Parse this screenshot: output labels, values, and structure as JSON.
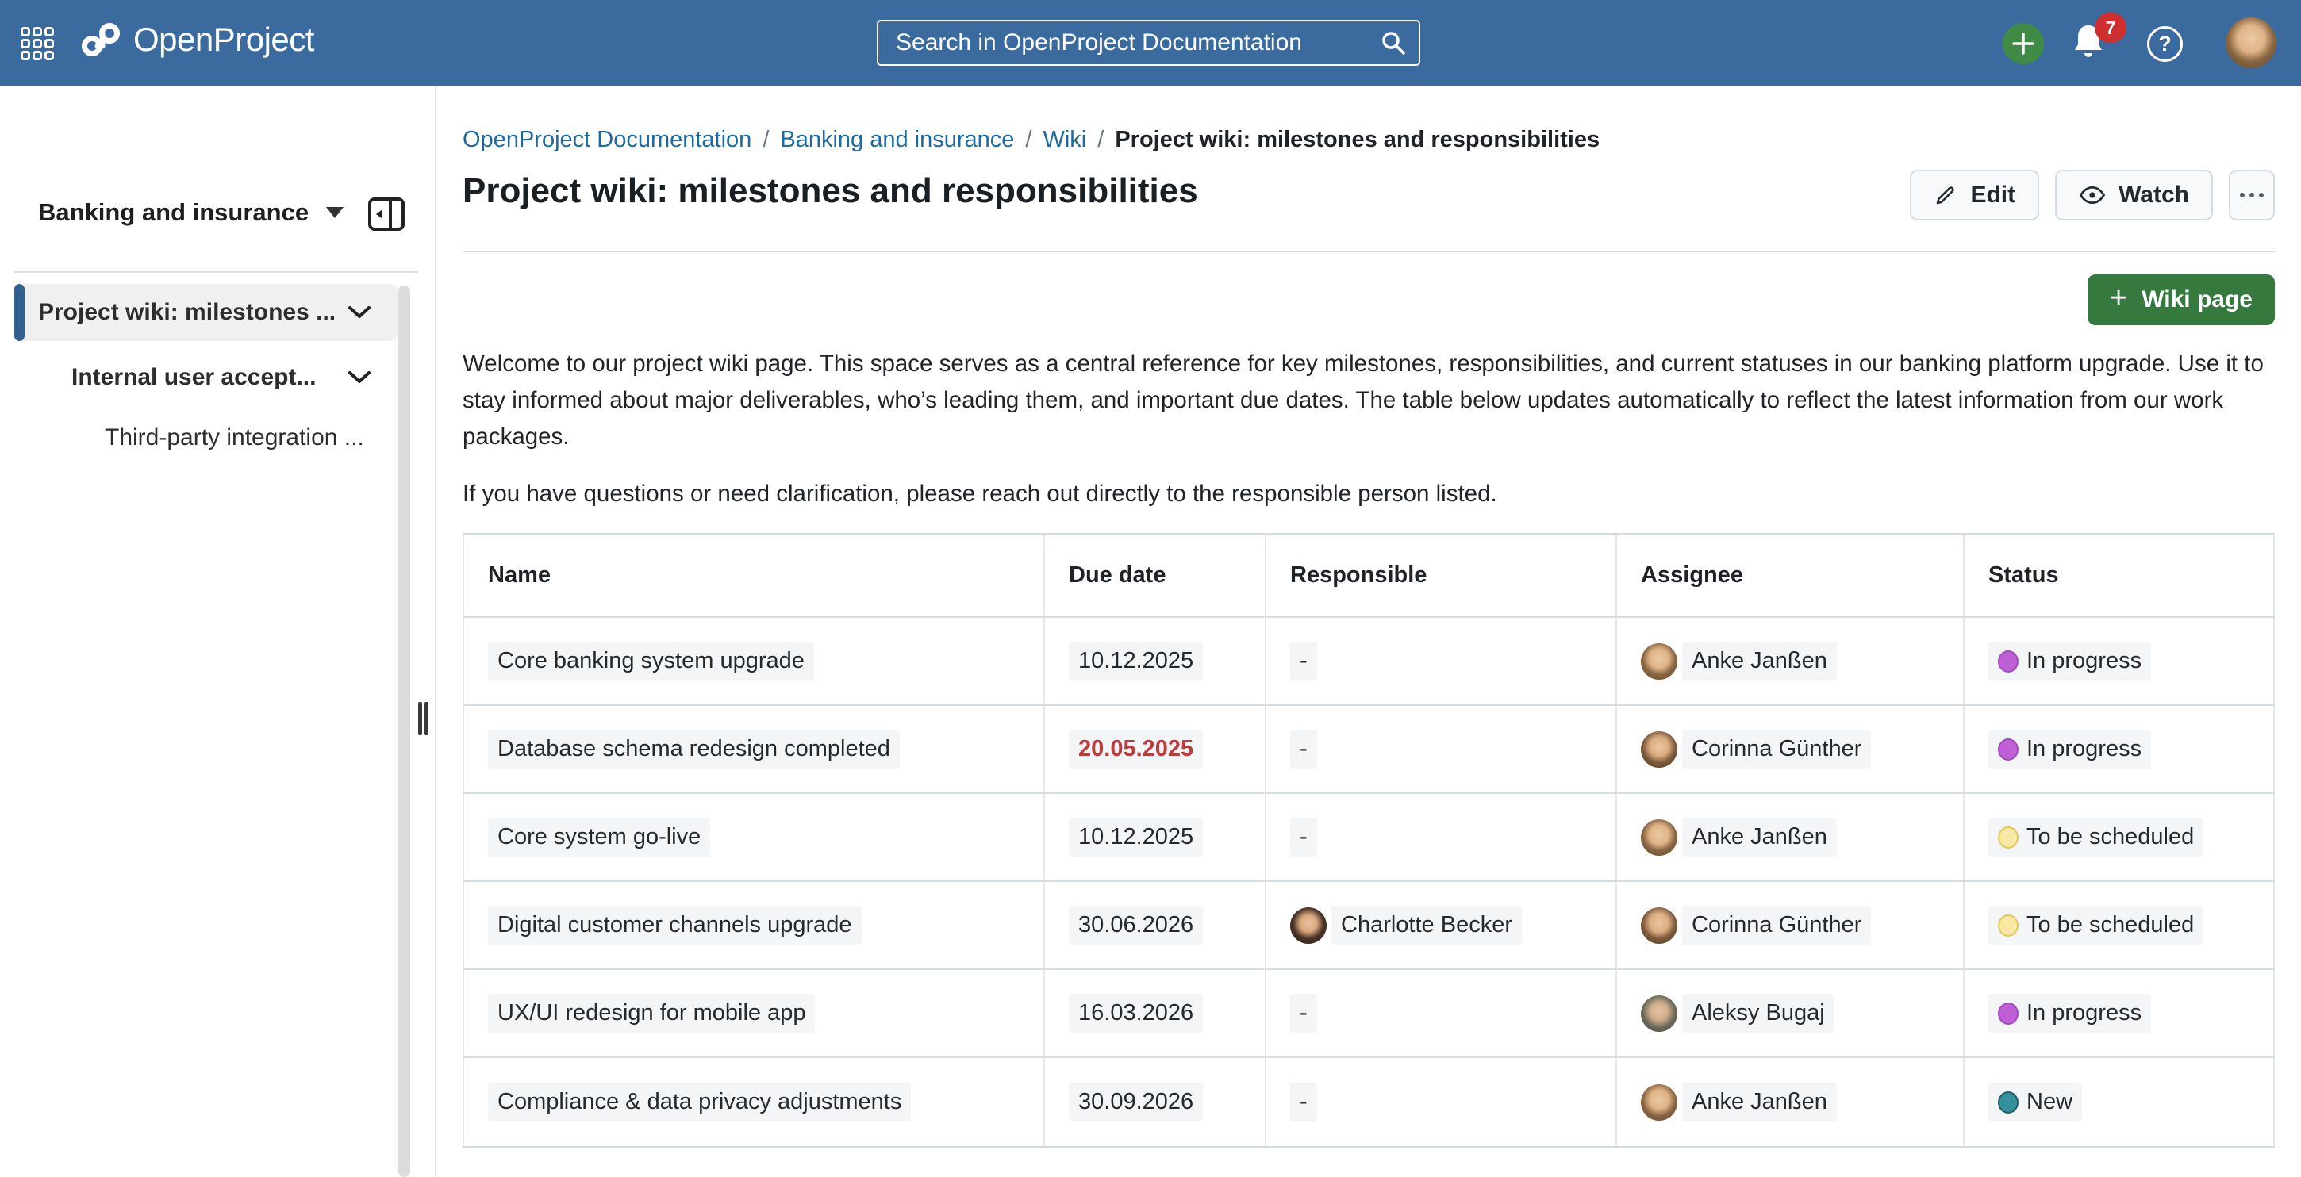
{
  "header": {
    "logo_text": "OpenProject",
    "search_placeholder": "Search in OpenProject Documentation",
    "notification_count": "7",
    "help_label": "?"
  },
  "sidebar": {
    "project_name": "Banking and insurance",
    "back_label": "Project wiki: milestones ...",
    "items": [
      {
        "label": "Project wiki: milestones ...",
        "selected": true
      },
      {
        "label": "Internal user accept...",
        "selected": false
      },
      {
        "label": "Third-party integration ...",
        "selected": false
      }
    ]
  },
  "breadcrumb": {
    "separator": "/",
    "items": [
      "OpenProject Documentation",
      "Banking and insurance",
      "Wiki",
      "Project wiki: milestones and responsibilities"
    ]
  },
  "page": {
    "title": "Project wiki: milestones and responsibilities",
    "edit_label": "Edit",
    "watch_label": "Watch",
    "add_button_label": "Wiki page",
    "add_button_plus": "+",
    "paragraphs": [
      "Welcome to our project wiki page. This space serves as a central reference for key milestones, responsibilities, and current statuses in our banking platform upgrade. Use it to stay informed about major deliverables, who’s leading them, and important due dates. The table below updates automatically to reflect the latest information from our work packages.",
      "If you have questions or need clarification, please reach out directly to the responsible person listed."
    ]
  },
  "table": {
    "columns": [
      "Name",
      "Due date",
      "Responsible",
      "Assignee",
      "Status"
    ],
    "empty_value": "-",
    "rows": [
      {
        "name": "Core banking system upgrade",
        "due": "10.12.2025",
        "overdue": false,
        "responsible": null,
        "assignee": {
          "name": "Anke Janßen",
          "avatar": "anke"
        },
        "status": "In progress",
        "status_key": "in_progress"
      },
      {
        "name": "Database schema redesign completed",
        "due": "20.05.2025",
        "overdue": true,
        "responsible": null,
        "assignee": {
          "name": "Corinna Günther",
          "avatar": "corinna"
        },
        "status": "In progress",
        "status_key": "in_progress"
      },
      {
        "name": "Core system go-live",
        "due": "10.12.2025",
        "overdue": false,
        "responsible": null,
        "assignee": {
          "name": "Anke Janßen",
          "avatar": "anke"
        },
        "status": "To be scheduled",
        "status_key": "to_be_scheduled"
      },
      {
        "name": "Digital customer channels upgrade",
        "due": "30.06.2026",
        "overdue": false,
        "responsible": {
          "name": "Charlotte Becker",
          "avatar": "charlotte"
        },
        "assignee": {
          "name": "Corinna Günther",
          "avatar": "corinna"
        },
        "status": "To be scheduled",
        "status_key": "to_be_scheduled"
      },
      {
        "name": "UX/UI redesign for mobile app",
        "due": "16.03.2026",
        "overdue": false,
        "responsible": null,
        "assignee": {
          "name": "Aleksy Bugaj",
          "avatar": "aleksy"
        },
        "status": "In progress",
        "status_key": "in_progress"
      },
      {
        "name": "Compliance & data privacy adjustments",
        "due": "30.09.2026",
        "overdue": false,
        "responsible": null,
        "assignee": {
          "name": "Anke Janßen",
          "avatar": "anke"
        },
        "status": "New",
        "status_key": "new"
      }
    ]
  },
  "colors": {
    "topbar": "#3a6a9e",
    "link": "#1d6aa3",
    "overdue_text": "#bf3a3a",
    "add_button_green": "#35793f",
    "status": {
      "in_progress": {
        "fill": "#c05fd6",
        "border": "#a24bbd"
      },
      "to_be_scheduled": {
        "fill": "#f7e8a4",
        "border": "#e0c95c"
      },
      "new": {
        "fill": "#35909e",
        "border": "#1f5e68"
      }
    }
  }
}
